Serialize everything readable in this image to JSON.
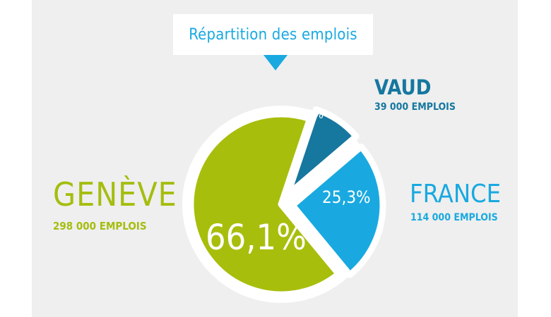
{
  "title": "Répartition des emplois",
  "chart_data": {
    "type": "pie",
    "title": "Répartition des emplois",
    "slices": [
      {
        "name": "GENÈVE",
        "value": 66.1,
        "label": "66,1%",
        "jobs": "298 000 EMPLOIS",
        "color": "#a8be0c",
        "exploded": false
      },
      {
        "name": "FRANCE",
        "value": 25.3,
        "label": "25,3%",
        "jobs": "114 000 EMPLOIS",
        "color": "#19a9e0",
        "exploded": true
      },
      {
        "name": "VAUD",
        "value": 8.6,
        "label": "8,6%",
        "jobs": "39 000 EMPLOIS",
        "color": "#16779f",
        "exploded": true
      }
    ]
  },
  "colors": {
    "geneve": "#a8be0c",
    "france": "#19a9e0",
    "vaud": "#16779f",
    "background": "#efefef"
  }
}
